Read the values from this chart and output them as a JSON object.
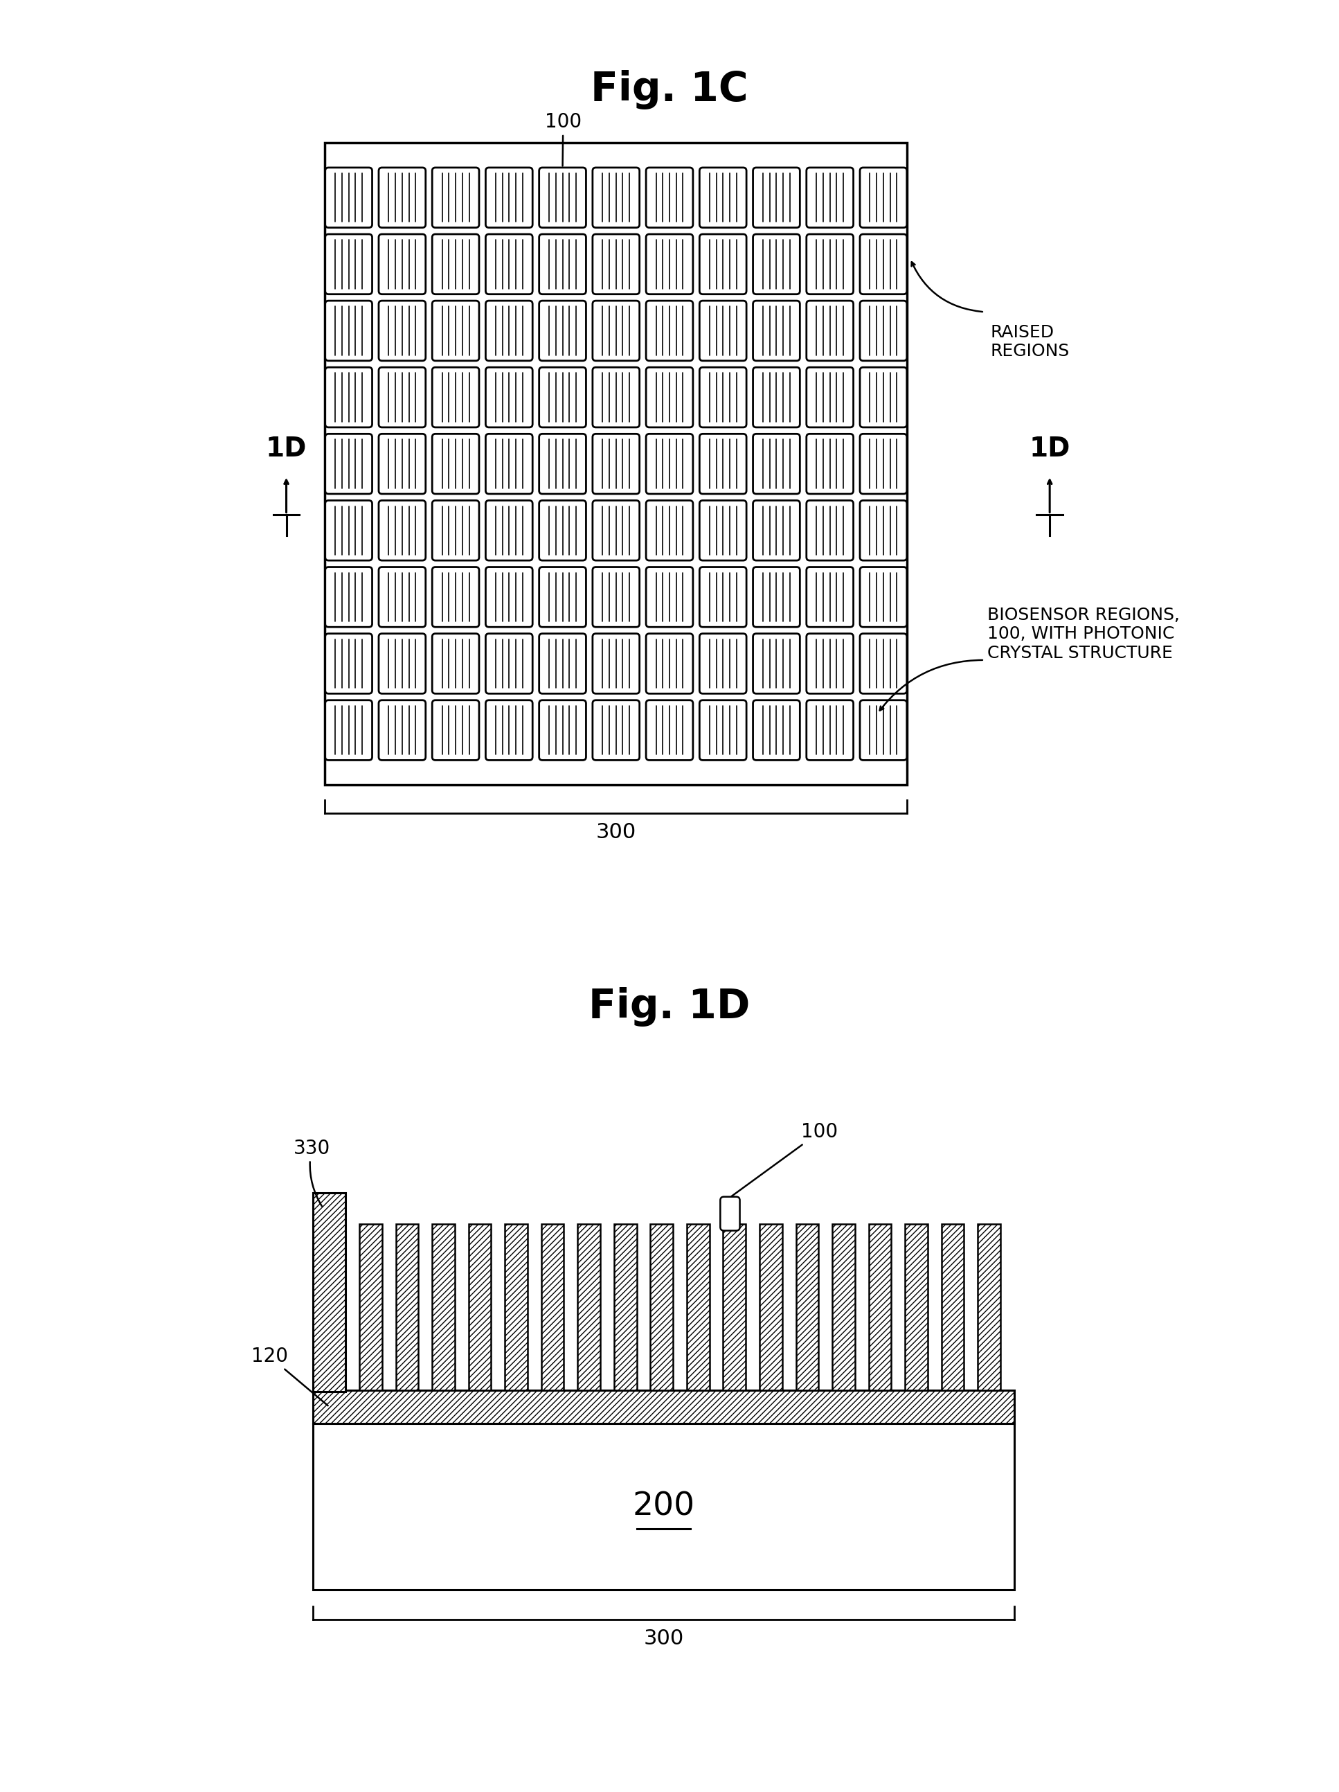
{
  "fig_title_1c": "Fig. 1C",
  "fig_title_1d": "Fig. 1D",
  "label_100_1c": "100",
  "label_300_1c": "300",
  "label_1d_left": "1D",
  "label_1d_right": "1D",
  "label_raised": "RAISED\nREGIONS",
  "label_biosensor": "BIOSENSOR REGIONS,\n100, WITH PHOTONIC\nCRYSTAL STRUCTURE",
  "label_330": "330",
  "label_120": "120",
  "label_100_1d": "100",
  "label_200": "200",
  "label_300_1d": "300",
  "grid_rows": 9,
  "grid_cols": 11,
  "bg_color": "#ffffff",
  "line_color": "#000000"
}
